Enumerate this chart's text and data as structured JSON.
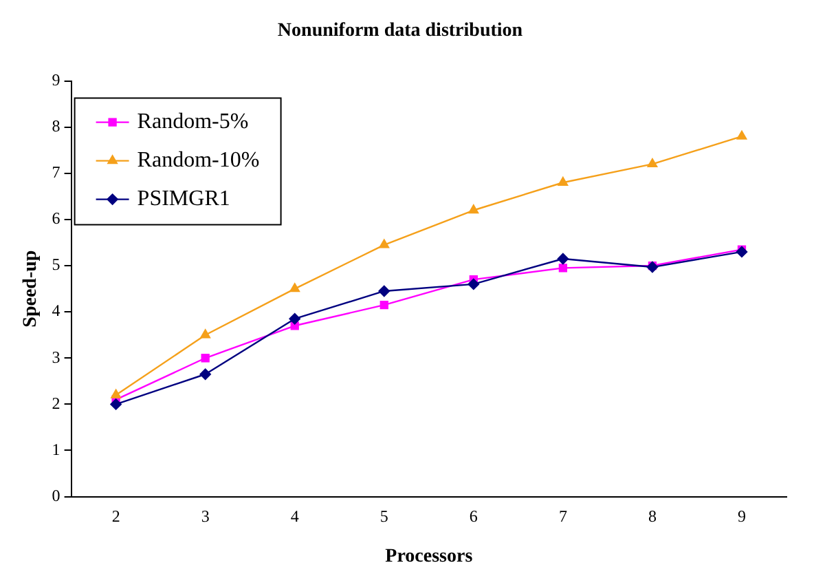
{
  "chart_data": {
    "type": "line",
    "title": "Nonuniform data distribution",
    "xlabel": "Processors",
    "ylabel": "Speed-up",
    "categories": [
      "2",
      "3",
      "4",
      "5",
      "6",
      "7",
      "8",
      "9"
    ],
    "series": [
      {
        "name": "Random-5%",
        "color": "#ff00ff",
        "marker": "square",
        "values": [
          2.1,
          3.0,
          3.7,
          4.15,
          4.7,
          4.95,
          5.0,
          5.35
        ]
      },
      {
        "name": "Random-10%",
        "color": "#f5a01a",
        "marker": "triangle",
        "values": [
          2.2,
          3.5,
          4.5,
          5.45,
          6.2,
          6.8,
          7.2,
          7.8
        ]
      },
      {
        "name": "PSIMGR1",
        "color": "#000080",
        "marker": "diamond",
        "values": [
          2.0,
          2.65,
          3.85,
          4.45,
          4.6,
          5.15,
          4.97,
          5.3
        ]
      }
    ],
    "ylim": [
      0,
      9
    ],
    "yticks": [
      0,
      1,
      2,
      3,
      4,
      5,
      6,
      7,
      8,
      9
    ],
    "grid": false,
    "legend": "top left",
    "line_style": "solid"
  }
}
